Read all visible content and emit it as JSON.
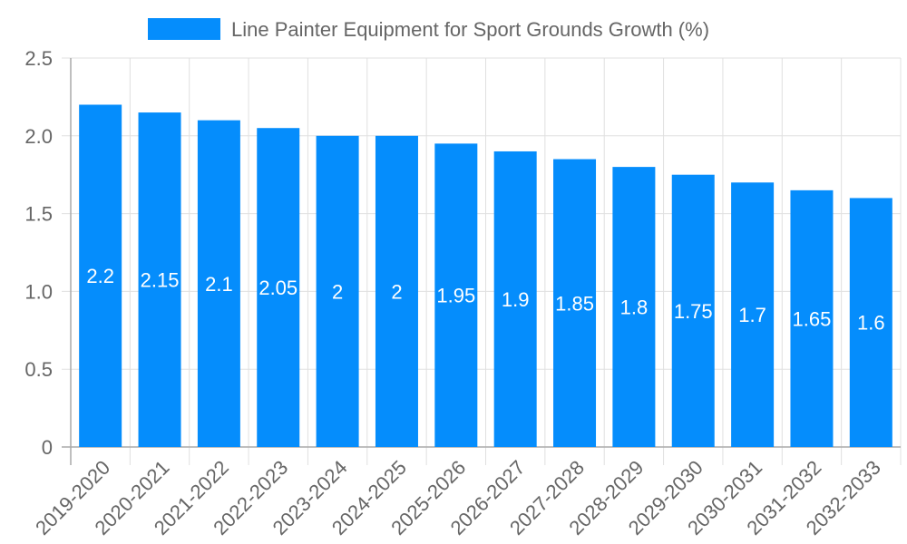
{
  "chart_data": {
    "type": "bar",
    "title": "",
    "xlabel": "",
    "ylabel": "",
    "legend": {
      "position": "top",
      "entries": [
        "Line Painter Equipment for Sport Grounds Growth (%)"
      ]
    },
    "categories": [
      "2019-2020",
      "2020-2021",
      "2021-2022",
      "2022-2023",
      "2023-2024",
      "2024-2025",
      "2025-2026",
      "2026-2027",
      "2027-2028",
      "2028-2029",
      "2029-2030",
      "2030-2031",
      "2031-2032",
      "2032-2033"
    ],
    "series": [
      {
        "name": "Line Painter Equipment for Sport Grounds Growth (%)",
        "color": "#058DFC",
        "values": [
          2.2,
          2.15,
          2.1,
          2.05,
          2,
          2,
          1.95,
          1.9,
          1.85,
          1.8,
          1.75,
          1.7,
          1.65,
          1.6
        ],
        "labels": [
          "2.2",
          "2.15",
          "2.1",
          "2.05",
          "2",
          "2",
          "1.95",
          "1.9",
          "1.85",
          "1.8",
          "1.75",
          "1.7",
          "1.65",
          "1.6"
        ]
      }
    ],
    "ylim": [
      0,
      2.5
    ],
    "yticks": [
      0,
      0.5,
      1.0,
      1.5,
      2.0,
      2.5
    ],
    "ytick_labels": [
      "0",
      "0.5",
      "1.0",
      "1.5",
      "2.0",
      "2.5"
    ],
    "grid": true,
    "xtick_rotation": -45
  },
  "legend": {
    "label": "Line Painter Equipment for Sport Grounds Growth (%)",
    "swatch_color": "#058DFC"
  }
}
